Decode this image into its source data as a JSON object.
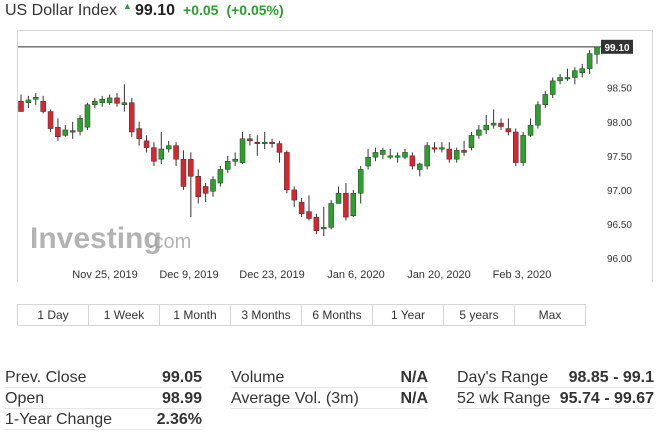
{
  "header": {
    "title": "US Dollar Index",
    "last": "99.10",
    "change": "+0.05",
    "change_pct": "(+0.05%)"
  },
  "chart_data": {
    "type": "candlestick",
    "watermark": "Investing.com",
    "last_price_label": "99.10",
    "ylim": [
      96.0,
      99.2
    ],
    "y_ticks": [
      "96.00",
      "96.50",
      "97.00",
      "97.50",
      "98.00",
      "98.50"
    ],
    "x_ticks": [
      "Nov 25, 2019",
      "Dec 9, 2019",
      "Dec 23, 2019",
      "Jan 6, 2020",
      "Jan 20, 2020",
      "Feb 3, 2020"
    ],
    "candles": [
      {
        "o": 98.3,
        "h": 98.4,
        "l": 98.15,
        "c": 98.15
      },
      {
        "o": 98.28,
        "h": 98.38,
        "l": 98.2,
        "c": 98.32
      },
      {
        "o": 98.33,
        "h": 98.42,
        "l": 98.25,
        "c": 98.36
      },
      {
        "o": 98.3,
        "h": 98.38,
        "l": 98.12,
        "c": 98.15
      },
      {
        "o": 98.15,
        "h": 98.18,
        "l": 97.85,
        "c": 97.9
      },
      {
        "o": 97.92,
        "h": 98.05,
        "l": 97.72,
        "c": 97.78
      },
      {
        "o": 97.8,
        "h": 97.95,
        "l": 97.78,
        "c": 97.88
      },
      {
        "o": 97.87,
        "h": 98.0,
        "l": 97.75,
        "c": 97.86
      },
      {
        "o": 97.86,
        "h": 98.1,
        "l": 97.8,
        "c": 98.05
      },
      {
        "o": 97.92,
        "h": 98.28,
        "l": 97.88,
        "c": 98.25
      },
      {
        "o": 98.25,
        "h": 98.35,
        "l": 98.2,
        "c": 98.3
      },
      {
        "o": 98.28,
        "h": 98.38,
        "l": 98.22,
        "c": 98.33
      },
      {
        "o": 98.28,
        "h": 98.4,
        "l": 98.25,
        "c": 98.35
      },
      {
        "o": 98.35,
        "h": 98.42,
        "l": 98.22,
        "c": 98.27
      },
      {
        "o": 98.25,
        "h": 98.55,
        "l": 98.15,
        "c": 98.28
      },
      {
        "o": 98.28,
        "h": 98.35,
        "l": 97.78,
        "c": 97.85
      },
      {
        "o": 97.9,
        "h": 98.0,
        "l": 97.65,
        "c": 97.75
      },
      {
        "o": 97.72,
        "h": 97.8,
        "l": 97.55,
        "c": 97.62
      },
      {
        "o": 97.62,
        "h": 97.7,
        "l": 97.35,
        "c": 97.42
      },
      {
        "o": 97.45,
        "h": 97.85,
        "l": 97.38,
        "c": 97.6
      },
      {
        "o": 97.6,
        "h": 97.72,
        "l": 97.55,
        "c": 97.65
      },
      {
        "o": 97.65,
        "h": 97.7,
        "l": 97.35,
        "c": 97.45
      },
      {
        "o": 97.45,
        "h": 97.58,
        "l": 97.0,
        "c": 97.05
      },
      {
        "o": 97.45,
        "h": 97.55,
        "l": 96.6,
        "c": 97.2
      },
      {
        "o": 97.2,
        "h": 97.3,
        "l": 96.8,
        "c": 96.9
      },
      {
        "o": 97.05,
        "h": 97.1,
        "l": 96.82,
        "c": 96.95
      },
      {
        "o": 96.98,
        "h": 97.2,
        "l": 96.9,
        "c": 97.15
      },
      {
        "o": 97.1,
        "h": 97.35,
        "l": 97.05,
        "c": 97.3
      },
      {
        "o": 97.3,
        "h": 97.5,
        "l": 97.25,
        "c": 97.42
      },
      {
        "o": 97.42,
        "h": 97.55,
        "l": 97.35,
        "c": 97.45
      },
      {
        "o": 97.4,
        "h": 97.85,
        "l": 97.38,
        "c": 97.75
      },
      {
        "o": 97.75,
        "h": 97.82,
        "l": 97.65,
        "c": 97.72
      },
      {
        "o": 97.7,
        "h": 97.8,
        "l": 97.5,
        "c": 97.68
      },
      {
        "o": 97.68,
        "h": 97.85,
        "l": 97.6,
        "c": 97.7
      },
      {
        "o": 97.7,
        "h": 97.75,
        "l": 97.62,
        "c": 97.68
      },
      {
        "o": 97.68,
        "h": 97.72,
        "l": 97.4,
        "c": 97.55
      },
      {
        "o": 97.55,
        "h": 97.58,
        "l": 96.95,
        "c": 97.0
      },
      {
        "o": 97.0,
        "h": 97.05,
        "l": 96.75,
        "c": 96.85
      },
      {
        "o": 96.82,
        "h": 96.88,
        "l": 96.6,
        "c": 96.65
      },
      {
        "o": 96.68,
        "h": 96.92,
        "l": 96.55,
        "c": 96.58
      },
      {
        "o": 96.6,
        "h": 96.65,
        "l": 96.35,
        "c": 96.4
      },
      {
        "o": 96.45,
        "h": 96.75,
        "l": 96.32,
        "c": 96.45
      },
      {
        "o": 96.45,
        "h": 96.85,
        "l": 96.42,
        "c": 96.8
      },
      {
        "o": 96.8,
        "h": 97.05,
        "l": 96.8,
        "c": 96.95
      },
      {
        "o": 96.95,
        "h": 97.1,
        "l": 96.55,
        "c": 96.6
      },
      {
        "o": 96.62,
        "h": 97.0,
        "l": 96.6,
        "c": 96.95
      },
      {
        "o": 96.95,
        "h": 97.35,
        "l": 96.8,
        "c": 97.3
      },
      {
        "o": 97.35,
        "h": 97.6,
        "l": 97.3,
        "c": 97.48
      },
      {
        "o": 97.48,
        "h": 97.62,
        "l": 97.42,
        "c": 97.55
      },
      {
        "o": 97.52,
        "h": 97.62,
        "l": 97.45,
        "c": 97.58
      },
      {
        "o": 97.5,
        "h": 97.6,
        "l": 97.45,
        "c": 97.5
      },
      {
        "o": 97.5,
        "h": 97.55,
        "l": 97.4,
        "c": 97.5
      },
      {
        "o": 97.48,
        "h": 97.6,
        "l": 97.45,
        "c": 97.55
      },
      {
        "o": 97.5,
        "h": 97.55,
        "l": 97.3,
        "c": 97.35
      },
      {
        "o": 97.3,
        "h": 97.4,
        "l": 97.2,
        "c": 97.38
      },
      {
        "o": 97.35,
        "h": 97.7,
        "l": 97.3,
        "c": 97.65
      },
      {
        "o": 97.62,
        "h": 97.7,
        "l": 97.55,
        "c": 97.6
      },
      {
        "o": 97.6,
        "h": 97.7,
        "l": 97.55,
        "c": 97.62
      },
      {
        "o": 97.6,
        "h": 97.7,
        "l": 97.4,
        "c": 97.45
      },
      {
        "o": 97.45,
        "h": 97.62,
        "l": 97.4,
        "c": 97.58
      },
      {
        "o": 97.58,
        "h": 97.72,
        "l": 97.5,
        "c": 97.55
      },
      {
        "o": 97.62,
        "h": 97.85,
        "l": 97.58,
        "c": 97.8
      },
      {
        "o": 97.8,
        "h": 97.95,
        "l": 97.75,
        "c": 97.88
      },
      {
        "o": 97.88,
        "h": 98.1,
        "l": 97.82,
        "c": 97.95
      },
      {
        "o": 97.95,
        "h": 98.18,
        "l": 97.9,
        "c": 97.98
      },
      {
        "o": 97.98,
        "h": 98.05,
        "l": 97.88,
        "c": 97.93
      },
      {
        "o": 97.9,
        "h": 98.05,
        "l": 97.8,
        "c": 97.85
      },
      {
        "o": 97.85,
        "h": 97.9,
        "l": 97.35,
        "c": 97.4
      },
      {
        "o": 97.4,
        "h": 97.85,
        "l": 97.35,
        "c": 97.8
      },
      {
        "o": 97.8,
        "h": 98.05,
        "l": 97.78,
        "c": 97.95
      },
      {
        "o": 97.95,
        "h": 98.3,
        "l": 97.9,
        "c": 98.25
      },
      {
        "o": 98.25,
        "h": 98.45,
        "l": 98.2,
        "c": 98.4
      },
      {
        "o": 98.4,
        "h": 98.65,
        "l": 98.35,
        "c": 98.6
      },
      {
        "o": 98.6,
        "h": 98.7,
        "l": 98.55,
        "c": 98.65
      },
      {
        "o": 98.65,
        "h": 98.78,
        "l": 98.6,
        "c": 98.65
      },
      {
        "o": 98.65,
        "h": 98.8,
        "l": 98.55,
        "c": 98.75
      },
      {
        "o": 98.72,
        "h": 98.85,
        "l": 98.65,
        "c": 98.78
      },
      {
        "o": 98.78,
        "h": 99.05,
        "l": 98.7,
        "c": 99.0
      },
      {
        "o": 98.99,
        "h": 99.1,
        "l": 98.85,
        "c": 99.1
      }
    ]
  },
  "ranges": [
    "1 Day",
    "1 Week",
    "1 Month",
    "3 Months",
    "6 Months",
    "1 Year",
    "5 years",
    "Max"
  ],
  "stats": {
    "prev_close_label": "Prev. Close",
    "prev_close": "99.05",
    "open_label": "Open",
    "open": "98.99",
    "year_change_label": "1-Year Change",
    "year_change": "2.36%",
    "volume_label": "Volume",
    "volume": "N/A",
    "avg_vol_label": "Average Vol. (3m)",
    "avg_vol": "N/A",
    "days_range_label": "Day's Range",
    "days_range": "98.85 - 99.1",
    "wk52_range_label": "52 wk Range",
    "wk52_range": "95.74 - 99.67"
  },
  "colors": {
    "up": "#2aa12a",
    "down": "#d9262d",
    "accent_green": "#2aa12a"
  }
}
